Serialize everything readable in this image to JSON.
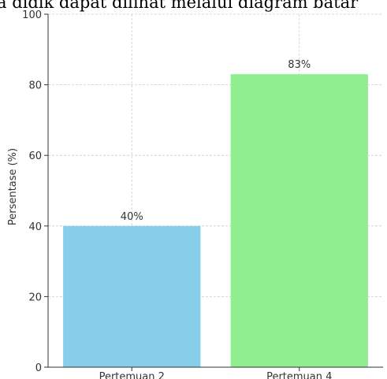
{
  "background_text": "a didik dapat dilihat melalui diagram batar",
  "chart_data": {
    "type": "bar",
    "title": "",
    "xlabel": "",
    "ylabel": "Persentase (%)",
    "ylim": [
      0,
      100
    ],
    "yticks": [
      0,
      20,
      40,
      60,
      80,
      100
    ],
    "grid": true,
    "categories": [
      "Pertemuan 2",
      "Pertemuan 4"
    ],
    "values": [
      40,
      83
    ],
    "data_labels": [
      "40%",
      "83%"
    ],
    "colors": [
      "#87CEEB",
      "#90EE90"
    ]
  }
}
